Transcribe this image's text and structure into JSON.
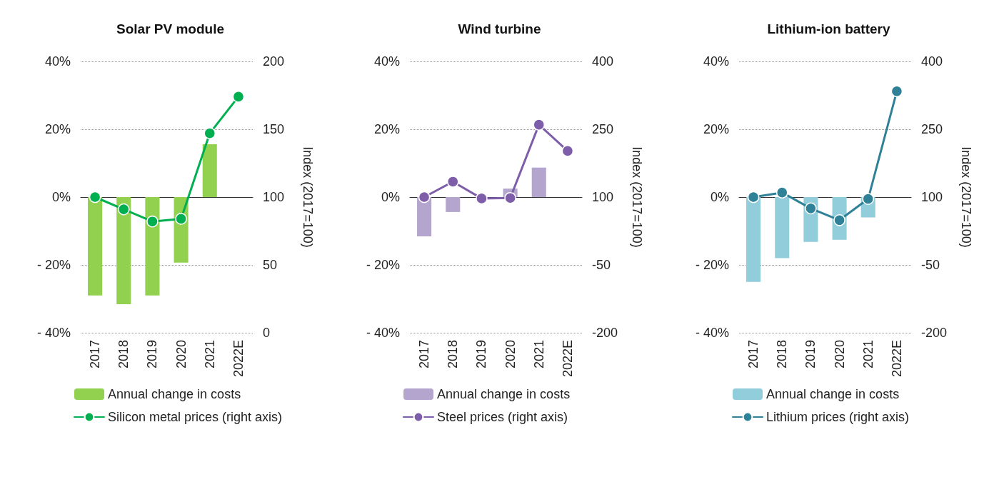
{
  "chart_data": [
    {
      "type": "bar",
      "title": "Solar PV module",
      "categories": [
        "2017",
        "2018",
        "2019",
        "2020",
        "2021",
        "2022E"
      ],
      "series": [
        {
          "name": "Annual change in costs",
          "color": "#92d050",
          "values": [
            -29,
            -31.6,
            -29,
            -19.3,
            15.6,
            null
          ]
        },
        {
          "name": "Silicon metal prices (right axis)",
          "type": "line",
          "axis": "y2",
          "color": "#00b050",
          "values": [
            100,
            91,
            82,
            84,
            147,
            174
          ]
        }
      ],
      "ylim": [
        -40,
        40
      ],
      "yticks": [
        {
          "value": -40,
          "label": "- 40%"
        },
        {
          "value": -20,
          "label": "- 20%"
        },
        {
          "value": 0,
          "label": "0%"
        },
        {
          "value": 20,
          "label": "20%"
        },
        {
          "value": 40,
          "label": "40%"
        }
      ],
      "y2label": "Index (2017=100)",
      "y2lim": [
        0,
        200
      ],
      "y2ticks": [
        0,
        50,
        100,
        150,
        200
      ],
      "grid": "y",
      "legend": "bottom",
      "marker": "circle"
    },
    {
      "type": "bar",
      "title": "Wind turbine",
      "categories": [
        "2017",
        "2018",
        "2019",
        "2020",
        "2021",
        "2022E"
      ],
      "series": [
        {
          "name": "Annual change in costs",
          "color": "#b4a5cf",
          "values": [
            -11.6,
            -4.4,
            null,
            2.5,
            8.7,
            null
          ]
        },
        {
          "name": "Steel prices (right axis)",
          "type": "line",
          "axis": "y2",
          "color": "#7e5ea9",
          "values": [
            100,
            134,
            97,
            98,
            260,
            202
          ]
        }
      ],
      "ylim": [
        -40,
        40
      ],
      "yticks": [
        {
          "value": -40,
          "label": "- 40%"
        },
        {
          "value": -20,
          "label": "- 20%"
        },
        {
          "value": 0,
          "label": "0%"
        },
        {
          "value": 20,
          "label": "20%"
        },
        {
          "value": 40,
          "label": "40%"
        }
      ],
      "y2label": "Index (2017=100)",
      "y2lim": [
        -200,
        400
      ],
      "y2ticks": [
        -200,
        -50,
        100,
        250,
        400
      ],
      "grid": "y",
      "legend": "bottom",
      "marker": "circle"
    },
    {
      "type": "bar",
      "title": "Lithium-ion battery",
      "categories": [
        "2017",
        "2018",
        "2019",
        "2020",
        "2021",
        "2022E"
      ],
      "series": [
        {
          "name": "Annual change in costs",
          "color": "#92cddc",
          "values": [
            -25,
            -18,
            -13.2,
            -12.6,
            -6,
            null
          ]
        },
        {
          "name": "Lithium prices (right axis)",
          "type": "line",
          "axis": "y2",
          "color": "#2f8197",
          "values": [
            100,
            110,
            75,
            49,
            96,
            334
          ]
        }
      ],
      "ylim": [
        -40,
        40
      ],
      "yticks": [
        {
          "value": -40,
          "label": "- 40%"
        },
        {
          "value": -20,
          "label": "- 20%"
        },
        {
          "value": 0,
          "label": "0%"
        },
        {
          "value": 20,
          "label": "20%"
        },
        {
          "value": 40,
          "label": "40%"
        }
      ],
      "y2label": "Index (2017=100)",
      "y2lim": [
        -200,
        400
      ],
      "y2ticks": [
        -200,
        -50,
        100,
        250,
        400
      ],
      "grid": "y",
      "legend": "bottom",
      "marker": "circle"
    }
  ]
}
